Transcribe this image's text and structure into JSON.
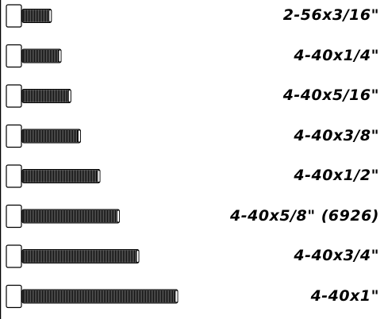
{
  "colors": {
    "ink": "#000000",
    "head_fill": "#ffffff",
    "thread_fill": "#6a6a6a"
  },
  "chart_data": {
    "type": "diagram",
    "items": [
      {
        "label": "2-56x3/16\"",
        "length_in": 0.1875
      },
      {
        "label": "4-40x1/4\"",
        "length_in": 0.25
      },
      {
        "label": "4-40x5/16\"",
        "length_in": 0.3125
      },
      {
        "label": "4-40x3/8\"",
        "length_in": 0.375
      },
      {
        "label": "4-40x1/2\"",
        "length_in": 0.5
      },
      {
        "label": "4-40x5/8\" (6926)",
        "length_in": 0.625
      },
      {
        "label": "4-40x3/4\"",
        "length_in": 0.75
      },
      {
        "label": "4-40x1\"",
        "length_in": 1.0
      }
    ]
  }
}
